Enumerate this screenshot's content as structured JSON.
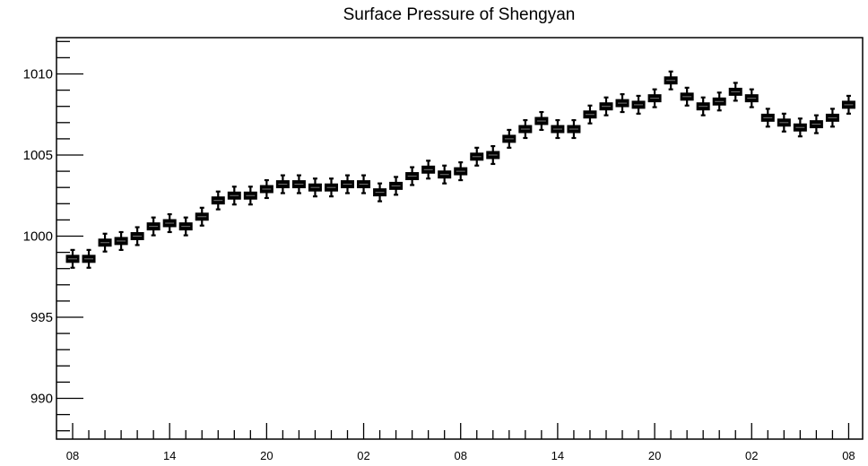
{
  "chart_data": {
    "type": "boxplot",
    "title": "Surface Pressure of Shengyan",
    "xlabel": "",
    "ylabel": "",
    "ylim": [
      987.5,
      1012.3
    ],
    "y_ticks": [
      990,
      995,
      1000,
      1005,
      1010
    ],
    "x_tick_labels": [
      "08",
      "14",
      "20",
      "02",
      "08",
      "14",
      "20",
      "02",
      "08"
    ],
    "x_tick_indices": [
      0,
      6,
      12,
      18,
      24,
      30,
      36,
      42,
      48
    ],
    "grid": false,
    "legend": "none",
    "values": [
      998.6,
      998.6,
      999.6,
      999.7,
      1000.0,
      1000.6,
      1000.8,
      1000.6,
      1001.2,
      1002.2,
      1002.5,
      1002.5,
      1002.9,
      1003.2,
      1003.2,
      1003.0,
      1003.0,
      1003.2,
      1003.2,
      1002.7,
      1003.1,
      1003.7,
      1004.1,
      1003.8,
      1004.0,
      1004.9,
      1005.0,
      1006.0,
      1006.6,
      1007.1,
      1006.6,
      1006.6,
      1007.5,
      1008.0,
      1008.2,
      1008.1,
      1008.5,
      1009.6,
      1008.6,
      1008.0,
      1008.3,
      1008.9,
      1008.5,
      1007.3,
      1007.0,
      1006.7,
      1006.9,
      1007.3,
      1008.1
    ],
    "spread_hpa": 0.55,
    "box_half_hpa": 0.22
  }
}
